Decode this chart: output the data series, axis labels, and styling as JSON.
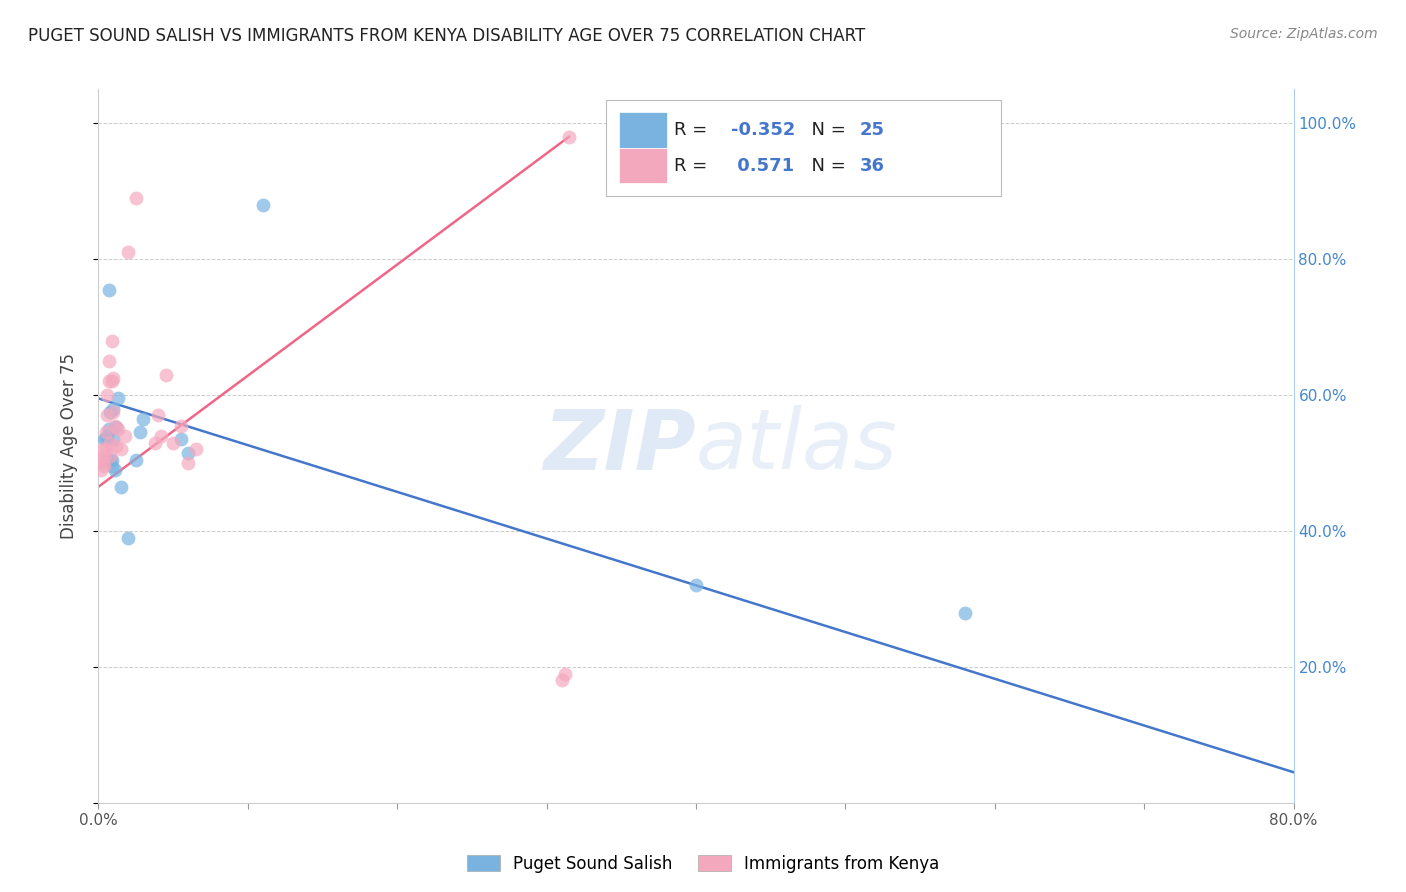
{
  "title": "PUGET SOUND SALISH VS IMMIGRANTS FROM KENYA DISABILITY AGE OVER 75 CORRELATION CHART",
  "source": "Source: ZipAtlas.com",
  "ylabel": "Disability Age Over 75",
  "xlim": [
    0.0,
    0.8
  ],
  "ylim": [
    0.0,
    1.05
  ],
  "ytick_vals": [
    0.0,
    0.2,
    0.4,
    0.6,
    0.8,
    1.0
  ],
  "xtick_vals": [
    0.0,
    0.1,
    0.2,
    0.3,
    0.4,
    0.5,
    0.6,
    0.7,
    0.8
  ],
  "grid_color": "#cccccc",
  "watermark_zip": "ZIP",
  "watermark_atlas": "atlas",
  "legend_R1": "-0.352",
  "legend_N1": "25",
  "legend_R2": "0.571",
  "legend_N2": "36",
  "blue_color": "#7ab3e0",
  "pink_color": "#f4a8be",
  "blue_line_color": "#4477cc",
  "pink_line_color": "#ee6688",
  "puget_scatter_x": [
    0.004,
    0.005,
    0.006,
    0.006,
    0.007,
    0.007,
    0.008,
    0.008,
    0.009,
    0.009,
    0.01,
    0.01,
    0.011,
    0.012,
    0.013,
    0.015,
    0.02,
    0.025,
    0.028,
    0.03,
    0.055,
    0.06,
    0.11,
    0.4,
    0.58
  ],
  "puget_scatter_y": [
    0.535,
    0.535,
    0.505,
    0.54,
    0.55,
    0.755,
    0.505,
    0.575,
    0.495,
    0.505,
    0.535,
    0.58,
    0.49,
    0.553,
    0.595,
    0.465,
    0.39,
    0.505,
    0.545,
    0.565,
    0.535,
    0.515,
    0.88,
    0.32,
    0.28
  ],
  "kenya_scatter_x": [
    0.002,
    0.002,
    0.003,
    0.003,
    0.004,
    0.004,
    0.005,
    0.005,
    0.006,
    0.006,
    0.007,
    0.007,
    0.008,
    0.008,
    0.009,
    0.009,
    0.01,
    0.01,
    0.011,
    0.012,
    0.013,
    0.015,
    0.018,
    0.02,
    0.025,
    0.038,
    0.04,
    0.042,
    0.045,
    0.05,
    0.055,
    0.06,
    0.065,
    0.31,
    0.312,
    0.315
  ],
  "kenya_scatter_y": [
    0.49,
    0.505,
    0.5,
    0.52,
    0.495,
    0.51,
    0.52,
    0.545,
    0.57,
    0.6,
    0.62,
    0.65,
    0.51,
    0.53,
    0.68,
    0.62,
    0.625,
    0.575,
    0.555,
    0.525,
    0.55,
    0.52,
    0.54,
    0.81,
    0.89,
    0.53,
    0.57,
    0.54,
    0.63,
    0.53,
    0.555,
    0.5,
    0.52,
    0.18,
    0.19,
    0.98
  ],
  "blue_line_x": [
    0.0,
    0.8
  ],
  "blue_line_y": [
    0.595,
    0.045
  ],
  "pink_line_x": [
    0.0,
    0.315
  ],
  "pink_line_y": [
    0.465,
    0.98
  ]
}
